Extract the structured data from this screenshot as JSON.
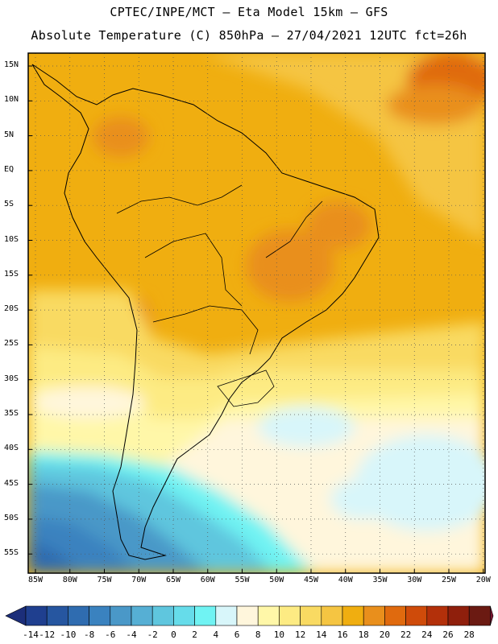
{
  "header": {
    "line1": "CPTEC/INPE/MCT —  Eta Model 15km — GFS",
    "line2": "Absolute Temperature (C) 850hPa — 27/04/2021 12UTC fct=26h"
  },
  "map": {
    "lat_labels": [
      "15N",
      "10N",
      "5N",
      "EQ",
      "5S",
      "10S",
      "15S",
      "20S",
      "25S",
      "30S",
      "35S",
      "40S",
      "45S",
      "50S",
      "55S"
    ],
    "lon_labels": [
      "85W",
      "80W",
      "75W",
      "70W",
      "65W",
      "60W",
      "55W",
      "50W",
      "45W",
      "40W",
      "35W",
      "30W",
      "25W",
      "20W"
    ]
  },
  "colorbar": {
    "labels": [
      "-14",
      "-12",
      "-10",
      "-8",
      "-6",
      "-4",
      "-2",
      "0",
      "2",
      "4",
      "6",
      "8",
      "10",
      "12",
      "14",
      "16",
      "18",
      "20",
      "22",
      "24",
      "26",
      "28"
    ],
    "colors": [
      "#1f3f8f",
      "#2656a0",
      "#2f6cb0",
      "#3a82bf",
      "#4a98c8",
      "#56afd4",
      "#5fc6de",
      "#66dcea",
      "#70f3f3",
      "#d8f6fa",
      "#fff6dc",
      "#fff7a8",
      "#fdeb83",
      "#f9da62",
      "#f5c542",
      "#f0ae10",
      "#e98f1c",
      "#e06a0e",
      "#cf4b0a",
      "#b3300a",
      "#8f1f0c",
      "#6b1a12"
    ],
    "under_color": "#1c2e7a",
    "over_color": "#7a1530"
  }
}
